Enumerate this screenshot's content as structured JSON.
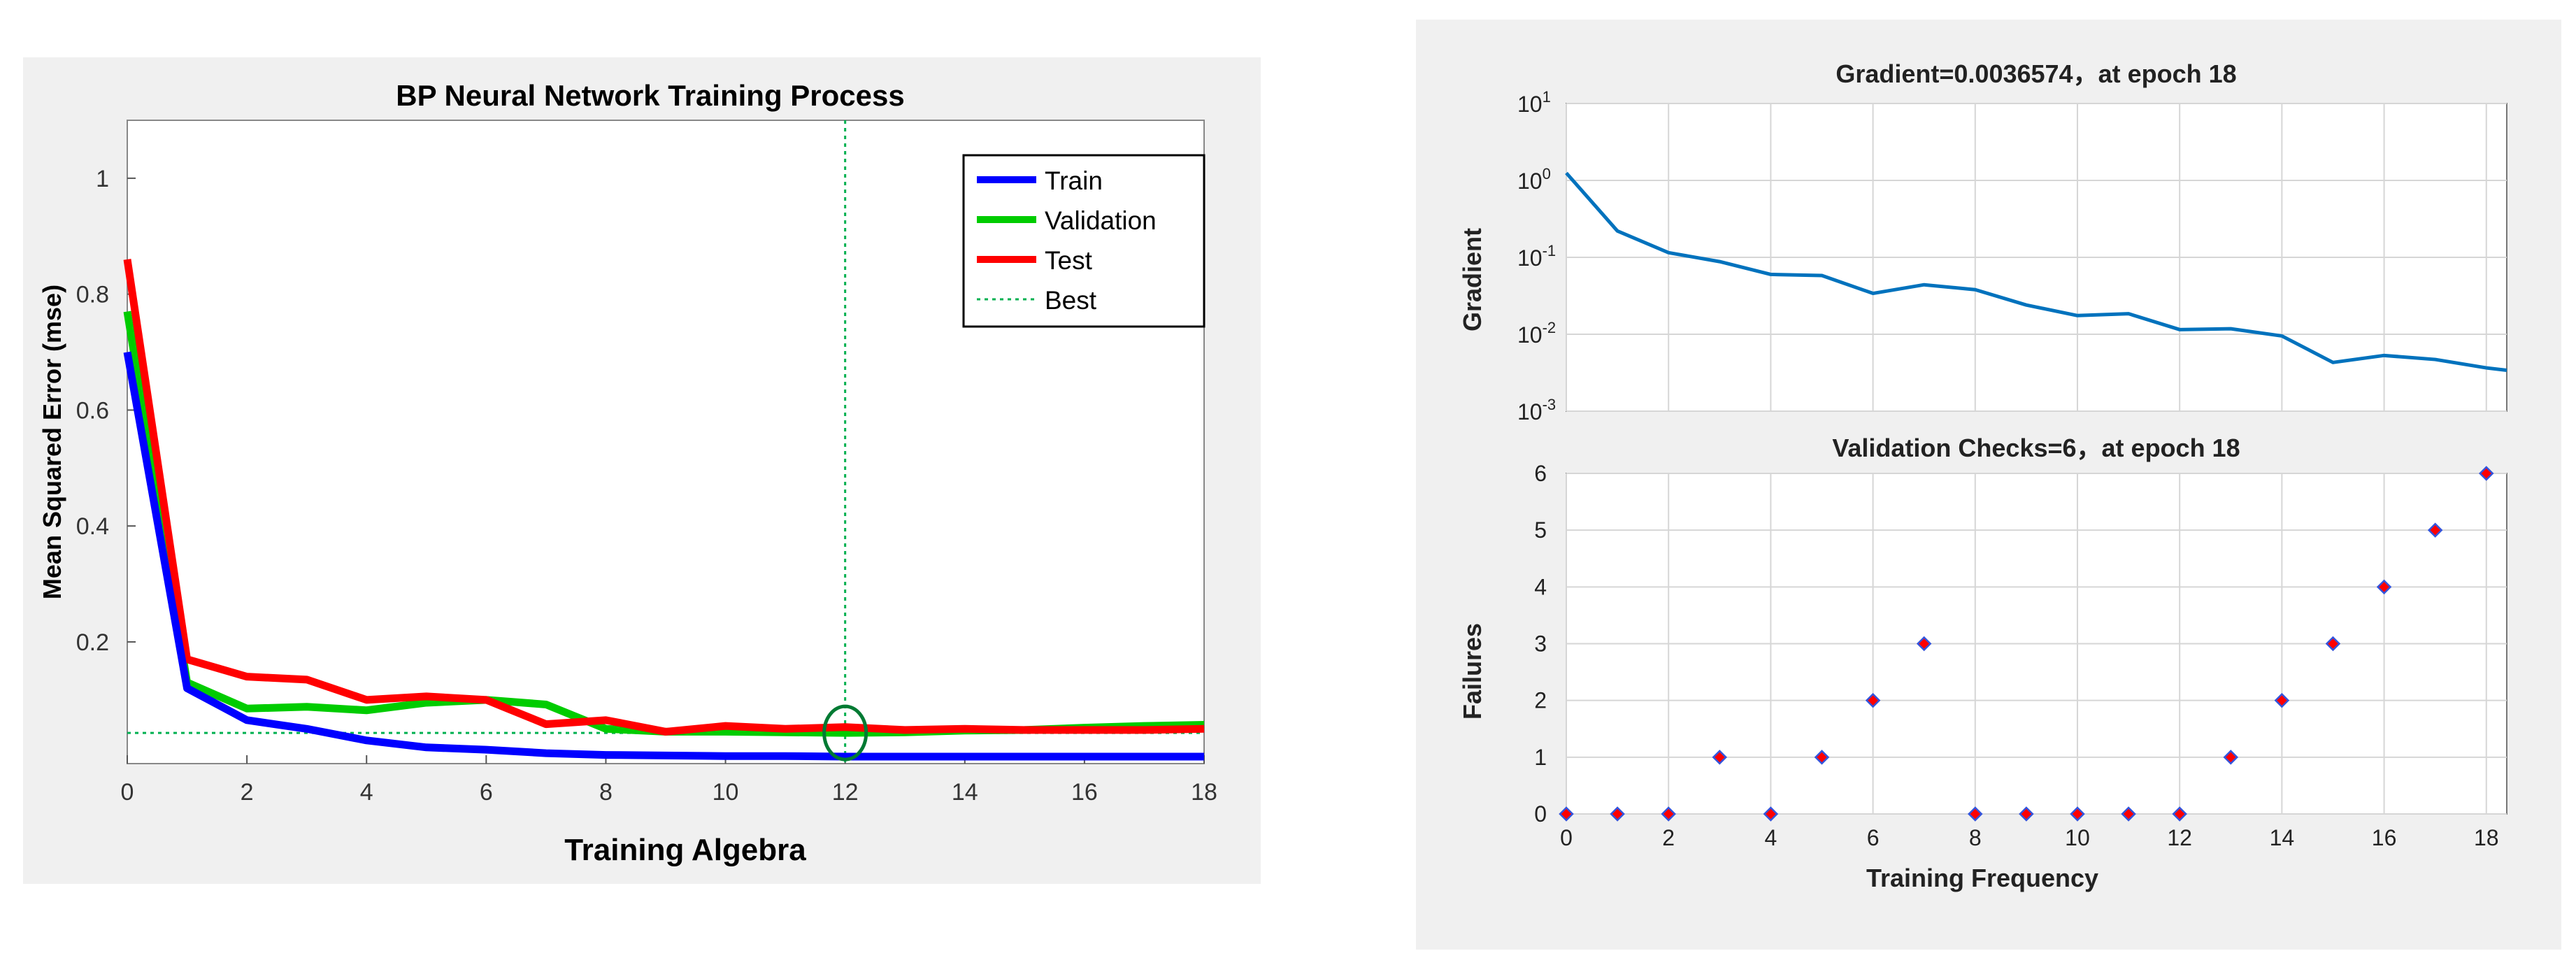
{
  "chart_data": [
    {
      "type": "line",
      "title": "BP Neural Network Training Process",
      "xlabel": "Training Algebra",
      "ylabel": "Mean Squared Error  (mse)",
      "xlim": [
        0,
        18
      ],
      "ylim": [
        -0.01,
        1.1
      ],
      "xticks": [
        0,
        2,
        4,
        6,
        8,
        10,
        12,
        14,
        16,
        18
      ],
      "yticks": [
        0.2,
        0.4,
        0.6,
        0.8,
        1
      ],
      "x": [
        0,
        1,
        2,
        3,
        4,
        5,
        6,
        7,
        8,
        9,
        10,
        11,
        12,
        13,
        14,
        15,
        16,
        17,
        18
      ],
      "series": [
        {
          "name": "Train",
          "color": "#0000ff",
          "values": [
            0.7,
            0.12,
            0.065,
            0.05,
            0.03,
            0.018,
            0.014,
            0.008,
            0.005,
            0.004,
            0.003,
            0.003,
            0.002,
            0.002,
            0.002,
            0.002,
            0.002,
            0.002,
            0.002
          ]
        },
        {
          "name": "Validation",
          "color": "#00cc00",
          "values": [
            0.77,
            0.13,
            0.085,
            0.088,
            0.082,
            0.095,
            0.1,
            0.092,
            0.05,
            0.045,
            0.045,
            0.044,
            0.043,
            0.044,
            0.047,
            0.048,
            0.052,
            0.055,
            0.057
          ]
        },
        {
          "name": "Test",
          "color": "#ff0000",
          "values": [
            0.86,
            0.17,
            0.14,
            0.135,
            0.1,
            0.106,
            0.1,
            0.058,
            0.065,
            0.045,
            0.055,
            0.05,
            0.053,
            0.048,
            0.05,
            0.048,
            0.048,
            0.048,
            0.05
          ]
        }
      ],
      "best": {
        "label": "Best",
        "epoch": 12,
        "value": 0.043,
        "color": "#00b050"
      },
      "legend": {
        "entries": [
          "Train",
          "Validation",
          "Test",
          "Best"
        ],
        "position": "top-right"
      }
    },
    {
      "type": "line",
      "title": "Gradient=0.0036574，at epoch 18",
      "ylabel": "Gradient",
      "yscale": "log",
      "ylim_exp": [
        -3,
        1
      ],
      "yticks": [
        {
          "base": "10",
          "exp": "1"
        },
        {
          "base": "10",
          "exp": "0"
        },
        {
          "base": "10",
          "exp": "-1"
        },
        {
          "base": "10",
          "exp": "-2"
        },
        {
          "base": "10",
          "exp": "-3"
        }
      ],
      "xlim": [
        0,
        18.4
      ],
      "x": [
        0,
        1,
        2,
        3,
        4,
        5,
        6,
        7,
        8,
        9,
        10,
        11,
        12,
        13,
        14,
        15,
        16,
        17,
        18,
        18.4
      ],
      "color": "#0072bd",
      "values": [
        1.25,
        0.22,
        0.115,
        0.088,
        0.06,
        0.058,
        0.034,
        0.044,
        0.038,
        0.024,
        0.0175,
        0.0185,
        0.0115,
        0.0118,
        0.0095,
        0.0043,
        0.0053,
        0.0047,
        0.0036574,
        0.0034
      ]
    },
    {
      "type": "scatter",
      "title": "Validation Checks=6，at epoch 18",
      "xlabel": "Training Frequency",
      "ylabel": "Failures",
      "xlim": [
        0,
        18.4
      ],
      "ylim": [
        0,
        6
      ],
      "xticks": [
        0,
        2,
        4,
        6,
        8,
        10,
        12,
        14,
        16,
        18
      ],
      "yticks": [
        0,
        1,
        2,
        3,
        4,
        5,
        6
      ],
      "marker_fill": "#ff0000",
      "marker_edge": "#3355dd",
      "x": [
        0,
        1,
        2,
        3,
        4,
        5,
        6,
        7,
        8,
        9,
        10,
        11,
        12,
        13,
        14,
        15,
        16,
        17,
        18
      ],
      "values": [
        0,
        0,
        0,
        1,
        0,
        1,
        2,
        3,
        0,
        0,
        0,
        0,
        0,
        1,
        2,
        3,
        4,
        5,
        6
      ]
    }
  ]
}
